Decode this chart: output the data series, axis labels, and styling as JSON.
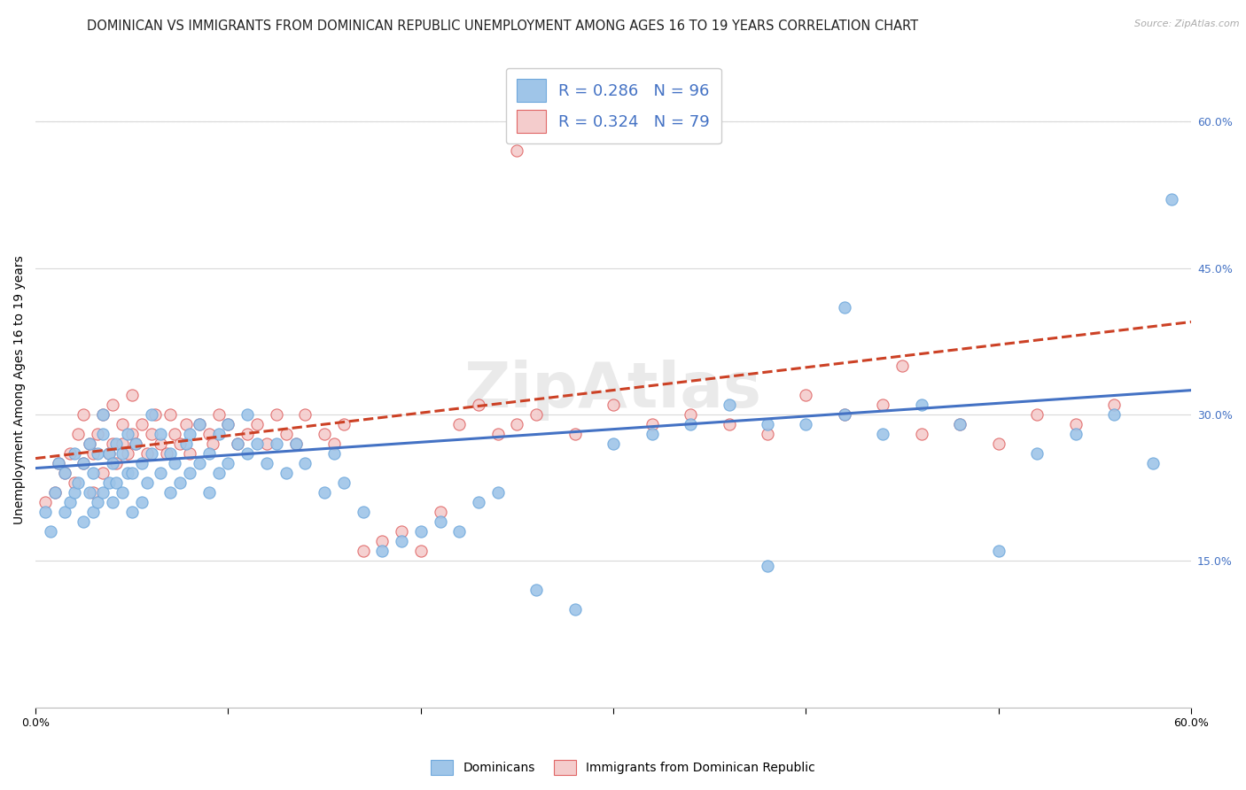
{
  "title": "DOMINICAN VS IMMIGRANTS FROM DOMINICAN REPUBLIC UNEMPLOYMENT AMONG AGES 16 TO 19 YEARS CORRELATION CHART",
  "source": "Source: ZipAtlas.com",
  "ylabel": "Unemployment Among Ages 16 to 19 years",
  "xlim": [
    0.0,
    0.6
  ],
  "ylim": [
    0.0,
    0.65
  ],
  "dominicans_color": "#9fc5e8",
  "dominicans_edge": "#6fa8dc",
  "immigrants_color": "#f4cccc",
  "immigrants_edge": "#e06666",
  "trendline_blue": "#4472c4",
  "trendline_pink": "#cc4125",
  "legend_dominicans": "Dominicans",
  "legend_immigrants": "Immigrants from Dominican Republic",
  "background_color": "#ffffff",
  "grid_color": "#d9d9d9",
  "title_fontsize": 10.5,
  "source_fontsize": 8,
  "axis_label_fontsize": 10,
  "tick_fontsize": 9,
  "blue_r": 0.286,
  "blue_n": 96,
  "pink_r": 0.324,
  "pink_n": 79,
  "blue_scatter_x": [
    0.005,
    0.008,
    0.01,
    0.012,
    0.015,
    0.015,
    0.018,
    0.02,
    0.02,
    0.022,
    0.025,
    0.025,
    0.028,
    0.028,
    0.03,
    0.03,
    0.032,
    0.032,
    0.035,
    0.035,
    0.035,
    0.038,
    0.038,
    0.04,
    0.04,
    0.042,
    0.042,
    0.045,
    0.045,
    0.048,
    0.048,
    0.05,
    0.05,
    0.052,
    0.055,
    0.055,
    0.058,
    0.06,
    0.06,
    0.065,
    0.065,
    0.07,
    0.07,
    0.072,
    0.075,
    0.078,
    0.08,
    0.08,
    0.085,
    0.085,
    0.09,
    0.09,
    0.095,
    0.095,
    0.1,
    0.1,
    0.105,
    0.11,
    0.11,
    0.115,
    0.12,
    0.125,
    0.13,
    0.135,
    0.14,
    0.15,
    0.155,
    0.16,
    0.17,
    0.18,
    0.19,
    0.2,
    0.21,
    0.22,
    0.23,
    0.24,
    0.26,
    0.28,
    0.3,
    0.32,
    0.34,
    0.36,
    0.38,
    0.4,
    0.42,
    0.44,
    0.46,
    0.48,
    0.5,
    0.52,
    0.54,
    0.56,
    0.58,
    0.59,
    0.42,
    0.38
  ],
  "blue_scatter_y": [
    0.2,
    0.18,
    0.22,
    0.25,
    0.2,
    0.24,
    0.21,
    0.22,
    0.26,
    0.23,
    0.19,
    0.25,
    0.22,
    0.27,
    0.2,
    0.24,
    0.21,
    0.26,
    0.22,
    0.28,
    0.3,
    0.23,
    0.26,
    0.21,
    0.25,
    0.23,
    0.27,
    0.22,
    0.26,
    0.24,
    0.28,
    0.2,
    0.24,
    0.27,
    0.21,
    0.25,
    0.23,
    0.26,
    0.3,
    0.24,
    0.28,
    0.22,
    0.26,
    0.25,
    0.23,
    0.27,
    0.24,
    0.28,
    0.25,
    0.29,
    0.22,
    0.26,
    0.24,
    0.28,
    0.25,
    0.29,
    0.27,
    0.26,
    0.3,
    0.27,
    0.25,
    0.27,
    0.24,
    0.27,
    0.25,
    0.22,
    0.26,
    0.23,
    0.2,
    0.16,
    0.17,
    0.18,
    0.19,
    0.18,
    0.21,
    0.22,
    0.12,
    0.1,
    0.27,
    0.28,
    0.29,
    0.31,
    0.29,
    0.29,
    0.3,
    0.28,
    0.31,
    0.29,
    0.16,
    0.26,
    0.28,
    0.3,
    0.25,
    0.52,
    0.41,
    0.145
  ],
  "pink_scatter_x": [
    0.005,
    0.01,
    0.012,
    0.015,
    0.018,
    0.02,
    0.022,
    0.025,
    0.025,
    0.028,
    0.03,
    0.03,
    0.032,
    0.035,
    0.035,
    0.038,
    0.04,
    0.04,
    0.042,
    0.045,
    0.045,
    0.048,
    0.05,
    0.05,
    0.052,
    0.055,
    0.058,
    0.06,
    0.062,
    0.065,
    0.068,
    0.07,
    0.072,
    0.075,
    0.078,
    0.08,
    0.085,
    0.09,
    0.092,
    0.095,
    0.1,
    0.105,
    0.11,
    0.115,
    0.12,
    0.125,
    0.13,
    0.135,
    0.14,
    0.15,
    0.155,
    0.16,
    0.17,
    0.18,
    0.19,
    0.2,
    0.21,
    0.22,
    0.23,
    0.24,
    0.25,
    0.26,
    0.28,
    0.3,
    0.32,
    0.34,
    0.36,
    0.38,
    0.4,
    0.42,
    0.44,
    0.46,
    0.48,
    0.5,
    0.52,
    0.54,
    0.56,
    0.45,
    0.25
  ],
  "pink_scatter_y": [
    0.21,
    0.22,
    0.25,
    0.24,
    0.26,
    0.23,
    0.28,
    0.25,
    0.3,
    0.27,
    0.22,
    0.26,
    0.28,
    0.24,
    0.3,
    0.26,
    0.27,
    0.31,
    0.25,
    0.27,
    0.29,
    0.26,
    0.28,
    0.32,
    0.27,
    0.29,
    0.26,
    0.28,
    0.3,
    0.27,
    0.26,
    0.3,
    0.28,
    0.27,
    0.29,
    0.26,
    0.29,
    0.28,
    0.27,
    0.3,
    0.29,
    0.27,
    0.28,
    0.29,
    0.27,
    0.3,
    0.28,
    0.27,
    0.3,
    0.28,
    0.27,
    0.29,
    0.16,
    0.17,
    0.18,
    0.16,
    0.2,
    0.29,
    0.31,
    0.28,
    0.29,
    0.3,
    0.28,
    0.31,
    0.29,
    0.3,
    0.29,
    0.28,
    0.32,
    0.3,
    0.31,
    0.28,
    0.29,
    0.27,
    0.3,
    0.29,
    0.31,
    0.35,
    0.57
  ]
}
